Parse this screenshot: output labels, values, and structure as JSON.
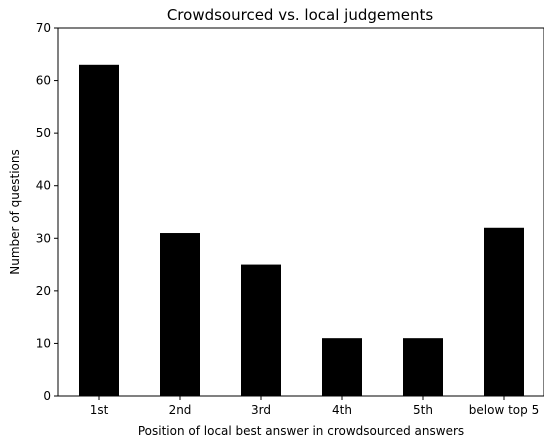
{
  "chart_data": {
    "type": "bar",
    "title": "Crowdsourced vs. local judgements",
    "xlabel": "Position of local best answer in crowdsourced answers",
    "ylabel": "Number of questions",
    "categories": [
      "1st",
      "2nd",
      "3rd",
      "4th",
      "5th",
      "below top 5"
    ],
    "values": [
      63,
      31,
      25,
      11,
      11,
      32
    ],
    "ylim": [
      0,
      70
    ],
    "yticks": [
      0,
      10,
      20,
      30,
      40,
      50,
      60,
      70
    ],
    "grid": false,
    "bar_color": "#000000"
  }
}
